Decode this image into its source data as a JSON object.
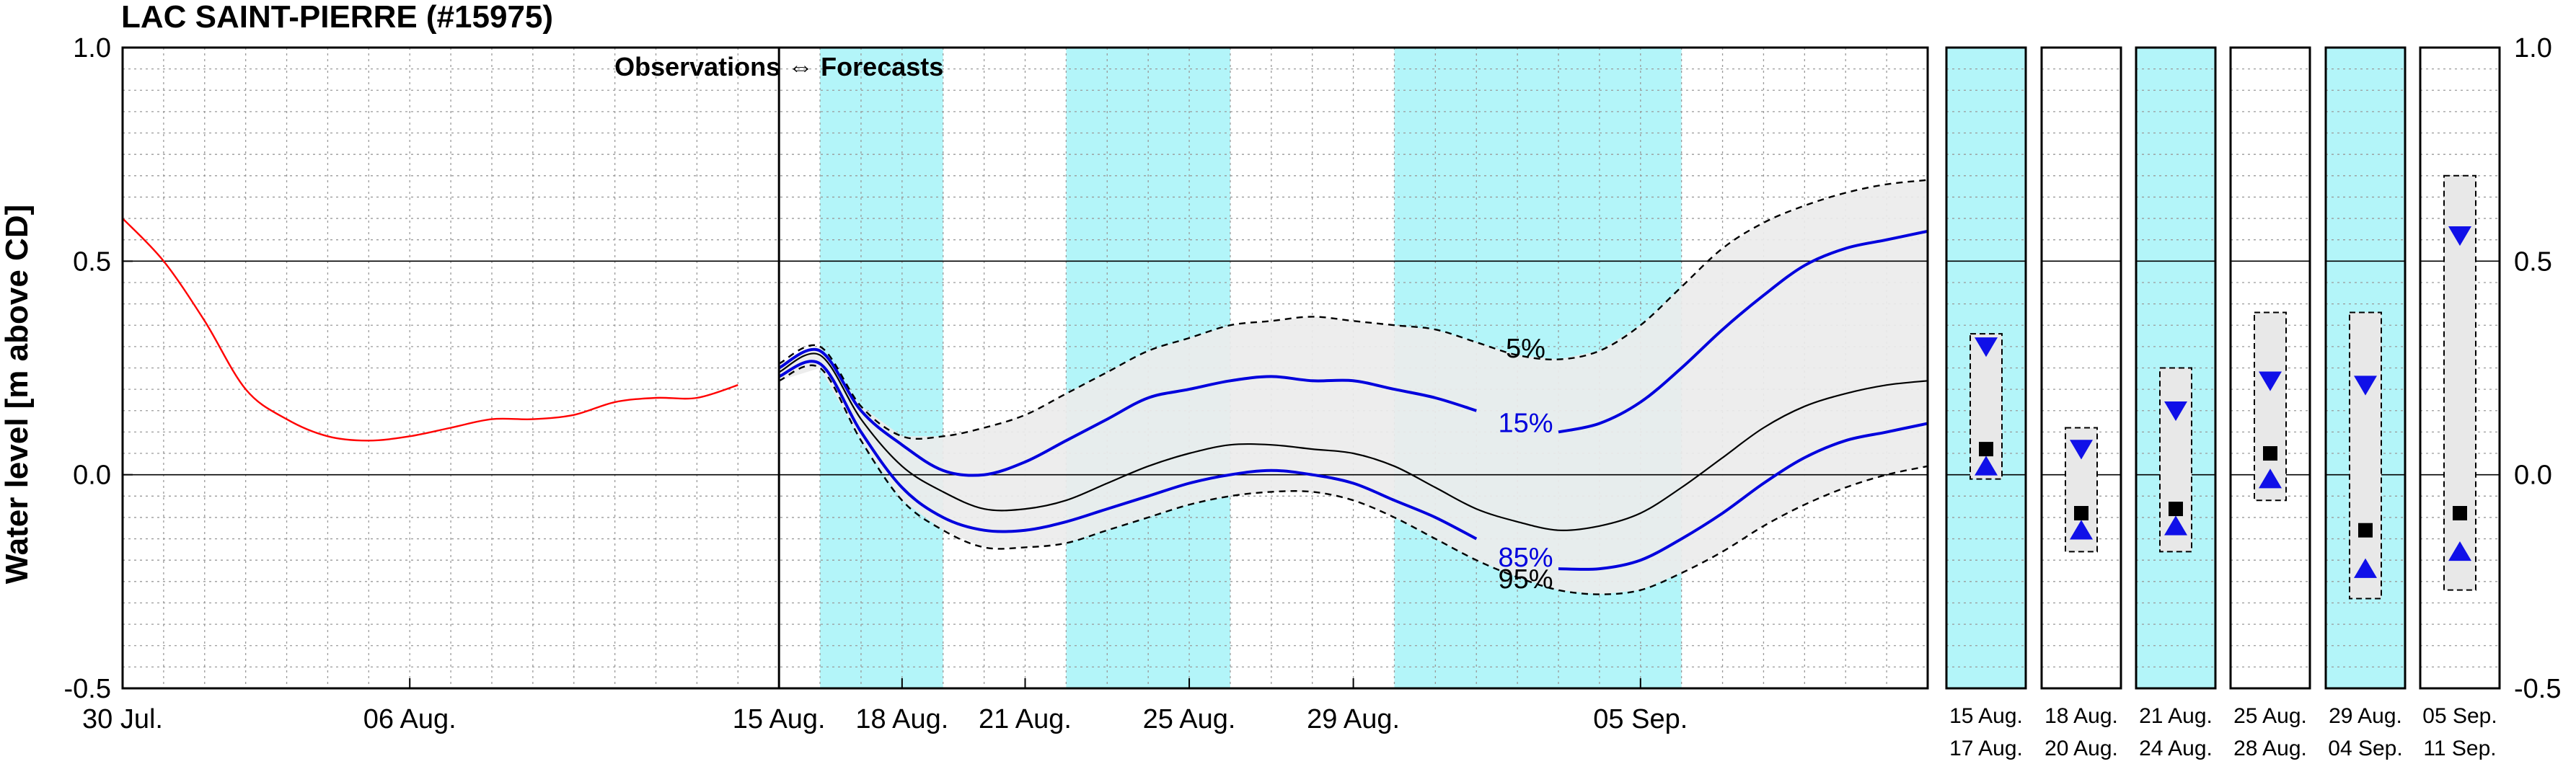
{
  "chart_data": {
    "type": "line",
    "title": "LAC SAINT-PIERRE (#15975)",
    "ylabel": "Water level [m above CD]",
    "ylim": [
      -0.5,
      1.0
    ],
    "yticks": [
      "1.0",
      "0.5",
      "0.0",
      "-0.5"
    ],
    "annotation": "Observations ⇔ Forecasts",
    "x_day_range": [
      0,
      44
    ],
    "forecast_start_day": 16,
    "xticks": [
      {
        "day": 0,
        "label": "30 Jul."
      },
      {
        "day": 7,
        "label": "06 Aug."
      },
      {
        "day": 16,
        "label": "15 Aug."
      },
      {
        "day": 19,
        "label": "18 Aug."
      },
      {
        "day": 22,
        "label": "21 Aug."
      },
      {
        "day": 26,
        "label": "25 Aug."
      },
      {
        "day": 30,
        "label": "29 Aug."
      },
      {
        "day": 37,
        "label": "05 Sep."
      }
    ],
    "shaded_periods_days": [
      [
        17,
        20
      ],
      [
        23,
        27
      ],
      [
        31,
        38
      ]
    ],
    "shade_color": "#b3f5f9",
    "band_color": "#ececec",
    "observations": {
      "name": "Observations",
      "color": "#ff0000",
      "x": [
        0,
        1,
        2,
        3,
        4,
        5,
        6,
        7,
        8,
        9,
        10,
        11,
        12,
        13,
        14,
        15
      ],
      "y": [
        0.6,
        0.5,
        0.36,
        0.2,
        0.13,
        0.09,
        0.08,
        0.09,
        0.11,
        0.13,
        0.13,
        0.14,
        0.17,
        0.18,
        0.18,
        0.21
      ]
    },
    "forecast_x": [
      16,
      17,
      18,
      19,
      20,
      21,
      22,
      23,
      24,
      25,
      26,
      27,
      28,
      29,
      30,
      31,
      32,
      33,
      34,
      35,
      36,
      37,
      38,
      39,
      40,
      41,
      42,
      43,
      44
    ],
    "series": [
      {
        "name": "5%",
        "color": "#000000",
        "dash": true,
        "label_day": 34.2,
        "label_y": 0.295,
        "values": [
          0.26,
          0.3,
          0.16,
          0.09,
          0.09,
          0.11,
          0.14,
          0.19,
          0.24,
          0.29,
          0.32,
          0.35,
          0.36,
          0.37,
          0.36,
          0.35,
          0.34,
          0.31,
          0.28,
          0.27,
          0.29,
          0.35,
          0.44,
          0.53,
          0.59,
          0.63,
          0.66,
          0.68,
          0.69
        ]
      },
      {
        "name": "15%",
        "color": "#0000dd",
        "dash": false,
        "label_day": 34.2,
        "label_y": 0.12,
        "values": [
          0.25,
          0.29,
          0.15,
          0.07,
          0.01,
          0.0,
          0.03,
          0.08,
          0.13,
          0.18,
          0.2,
          0.22,
          0.23,
          0.22,
          0.22,
          0.2,
          0.18,
          0.15,
          null,
          0.1,
          0.12,
          0.17,
          0.25,
          0.34,
          0.42,
          0.49,
          0.53,
          0.55,
          0.57
        ]
      },
      {
        "name": "50%",
        "color": "#000000",
        "dash": false,
        "label_day": null,
        "label_y": null,
        "values": [
          0.24,
          0.28,
          0.13,
          0.02,
          -0.04,
          -0.08,
          -0.08,
          -0.06,
          -0.02,
          0.02,
          0.05,
          0.07,
          0.07,
          0.06,
          0.05,
          0.02,
          -0.03,
          -0.08,
          -0.11,
          -0.13,
          -0.12,
          -0.09,
          -0.03,
          0.04,
          0.11,
          0.16,
          0.19,
          0.21,
          0.22
        ]
      },
      {
        "name": "85%",
        "color": "#0000dd",
        "dash": false,
        "label_day": 34.2,
        "label_y": -0.195,
        "values": [
          0.23,
          0.26,
          0.1,
          -0.03,
          -0.1,
          -0.13,
          -0.13,
          -0.11,
          -0.08,
          -0.05,
          -0.02,
          0.0,
          0.01,
          0.0,
          -0.02,
          -0.06,
          -0.1,
          -0.15,
          null,
          -0.22,
          -0.22,
          -0.2,
          -0.15,
          -0.09,
          -0.02,
          0.04,
          0.08,
          0.1,
          0.12
        ]
      },
      {
        "name": "95%",
        "color": "#000000",
        "dash": true,
        "label_day": 34.2,
        "label_y": -0.245,
        "values": [
          0.22,
          0.25,
          0.08,
          -0.06,
          -0.13,
          -0.17,
          -0.17,
          -0.16,
          -0.13,
          -0.1,
          -0.07,
          -0.05,
          -0.04,
          -0.04,
          -0.06,
          -0.1,
          -0.15,
          -0.2,
          -0.24,
          -0.27,
          -0.28,
          -0.27,
          -0.23,
          -0.18,
          -0.12,
          -0.07,
          -0.03,
          0.0,
          0.02
        ]
      }
    ],
    "period_panels": [
      {
        "label_top": "15 Aug.",
        "label_bottom": "17 Aug.",
        "shaded": true,
        "box": [
          -0.01,
          0.33
        ],
        "median": 0.06,
        "down_triangle": 0.3,
        "up_triangle": 0.02
      },
      {
        "label_top": "18 Aug.",
        "label_bottom": "20 Aug.",
        "shaded": false,
        "box": [
          -0.18,
          0.11
        ],
        "median": -0.09,
        "down_triangle": 0.06,
        "up_triangle": -0.13
      },
      {
        "label_top": "21 Aug.",
        "label_bottom": "24 Aug.",
        "shaded": true,
        "box": [
          -0.18,
          0.25
        ],
        "median": -0.08,
        "down_triangle": 0.15,
        "up_triangle": -0.12
      },
      {
        "label_top": "25 Aug.",
        "label_bottom": "28 Aug.",
        "shaded": false,
        "box": [
          -0.06,
          0.38
        ],
        "median": 0.05,
        "down_triangle": 0.22,
        "up_triangle": -0.01
      },
      {
        "label_top": "29 Aug.",
        "label_bottom": "04 Sep.",
        "shaded": true,
        "box": [
          -0.29,
          0.38
        ],
        "median": -0.13,
        "down_triangle": 0.21,
        "up_triangle": -0.22
      },
      {
        "label_top": "05 Sep.",
        "label_bottom": "11 Sep.",
        "shaded": false,
        "box": [
          -0.27,
          0.7
        ],
        "median": -0.09,
        "down_triangle": 0.56,
        "up_triangle": -0.18
      }
    ]
  }
}
